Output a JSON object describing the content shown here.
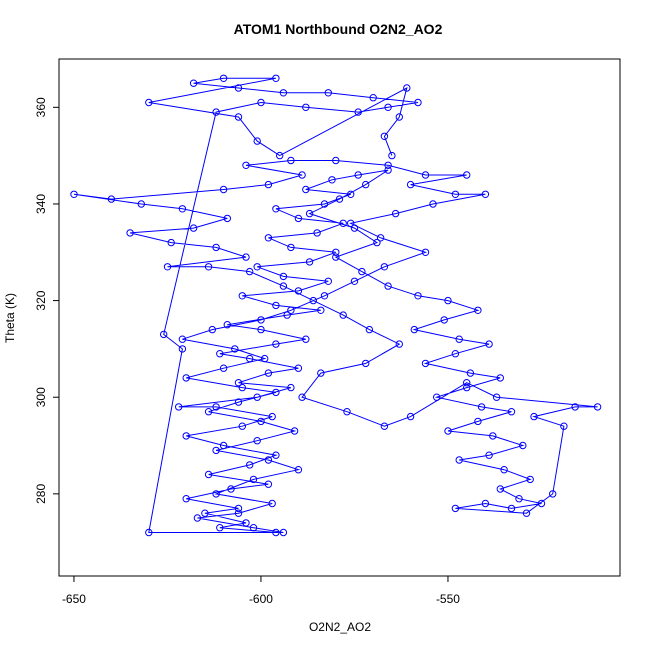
{
  "chart_data": {
    "type": "scatter",
    "title": "ATOM1 Northbound O2N2_AO2",
    "xlabel": "O2N2_AO2",
    "ylabel": "Theta (K)",
    "xlim": [
      -654,
      -504
    ],
    "ylim": [
      263,
      370
    ],
    "xticks": [
      -650,
      -600,
      -550
    ],
    "yticks": [
      280,
      300,
      320,
      340,
      360
    ],
    "grid": false,
    "legend": "none",
    "colors": {
      "series": "#0000ff",
      "axes": "#000000",
      "background": "#ffffff"
    },
    "series": [
      {
        "marker": "open-circle",
        "line": true,
        "points": [
          [
            -596,
            272
          ],
          [
            -611,
            273
          ],
          [
            -604,
            274
          ],
          [
            -615,
            276
          ],
          [
            -606,
            277
          ],
          [
            -620,
            279
          ],
          [
            -608,
            281
          ],
          [
            -598,
            282
          ],
          [
            -614,
            284
          ],
          [
            -603,
            286
          ],
          [
            -596,
            288
          ],
          [
            -610,
            290
          ],
          [
            -620,
            292
          ],
          [
            -605,
            294
          ],
          [
            -597,
            296
          ],
          [
            -612,
            298
          ],
          [
            -622,
            298
          ],
          [
            -601,
            300
          ],
          [
            -592,
            302
          ],
          [
            -606,
            303
          ],
          [
            -598,
            305
          ],
          [
            -590,
            306
          ],
          [
            -603,
            308
          ],
          [
            -611,
            309
          ],
          [
            -596,
            311
          ],
          [
            -588,
            312
          ],
          [
            -600,
            314
          ],
          [
            -609,
            315
          ],
          [
            -593,
            317
          ],
          [
            -584,
            318
          ],
          [
            -596,
            319
          ],
          [
            -605,
            321
          ],
          [
            -590,
            322
          ],
          [
            -582,
            324
          ],
          [
            -594,
            325
          ],
          [
            -601,
            327
          ],
          [
            -587,
            328
          ],
          [
            -580,
            330
          ],
          [
            -592,
            331
          ],
          [
            -598,
            333
          ],
          [
            -585,
            334
          ],
          [
            -578,
            336
          ],
          [
            -590,
            337
          ],
          [
            -596,
            339
          ],
          [
            -583,
            340
          ],
          [
            -576,
            342
          ],
          [
            -588,
            343
          ],
          [
            -581,
            345
          ],
          [
            -574,
            346
          ],
          [
            -566,
            347
          ],
          [
            -572,
            344
          ],
          [
            -579,
            341
          ],
          [
            -587,
            338
          ],
          [
            -575,
            335
          ],
          [
            -569,
            332
          ],
          [
            -580,
            329
          ],
          [
            -573,
            326
          ],
          [
            -566,
            323
          ],
          [
            -558,
            321
          ],
          [
            -550,
            320
          ],
          [
            -542,
            318
          ],
          [
            -551,
            316
          ],
          [
            -559,
            314
          ],
          [
            -547,
            312
          ],
          [
            -539,
            311
          ],
          [
            -548,
            309
          ],
          [
            -556,
            307
          ],
          [
            -544,
            305
          ],
          [
            -536,
            304
          ],
          [
            -545,
            302
          ],
          [
            -553,
            300
          ],
          [
            -541,
            298
          ],
          [
            -533,
            297
          ],
          [
            -542,
            295
          ],
          [
            -550,
            293
          ],
          [
            -538,
            292
          ],
          [
            -530,
            290
          ],
          [
            -539,
            288
          ],
          [
            -547,
            287
          ],
          [
            -535,
            285
          ],
          [
            -528,
            283
          ],
          [
            -536,
            281
          ],
          [
            -531,
            279
          ],
          [
            -525,
            278
          ],
          [
            -533,
            277
          ],
          [
            -540,
            278
          ],
          [
            -548,
            277
          ],
          [
            -529,
            276
          ],
          [
            -522,
            280
          ],
          [
            -519,
            294
          ],
          [
            -527,
            296
          ],
          [
            -516,
            298
          ],
          [
            -510,
            298
          ],
          [
            -537,
            300
          ],
          [
            -545,
            303
          ],
          [
            -560,
            296
          ],
          [
            -567,
            294
          ],
          [
            -577,
            297
          ],
          [
            -589,
            300
          ],
          [
            -584,
            305
          ],
          [
            -572,
            307
          ],
          [
            -563,
            311
          ],
          [
            -571,
            314
          ],
          [
            -578,
            317
          ],
          [
            -586,
            320
          ],
          [
            -594,
            323
          ],
          [
            -603,
            326
          ],
          [
            -614,
            327
          ],
          [
            -625,
            327
          ],
          [
            -604,
            329
          ],
          [
            -612,
            331
          ],
          [
            -624,
            332
          ],
          [
            -635,
            334
          ],
          [
            -618,
            335
          ],
          [
            -609,
            337
          ],
          [
            -621,
            339
          ],
          [
            -632,
            340
          ],
          [
            -650,
            342
          ],
          [
            -640,
            341
          ],
          [
            -610,
            343
          ],
          [
            -598,
            344
          ],
          [
            -589,
            346
          ],
          [
            -604,
            348
          ],
          [
            -592,
            349
          ],
          [
            -580,
            349
          ],
          [
            -566,
            348
          ],
          [
            -556,
            346
          ],
          [
            -545,
            346
          ],
          [
            -560,
            344
          ],
          [
            -548,
            342
          ],
          [
            -540,
            342
          ],
          [
            -554,
            340
          ],
          [
            -564,
            338
          ],
          [
            -576,
            336
          ],
          [
            -568,
            333
          ],
          [
            -556,
            330
          ],
          [
            -567,
            327
          ],
          [
            -575,
            324
          ],
          [
            -583,
            321
          ],
          [
            -592,
            318
          ],
          [
            -600,
            316
          ],
          [
            -613,
            314
          ],
          [
            -621,
            312
          ],
          [
            -607,
            310
          ],
          [
            -599,
            308
          ],
          [
            -610,
            306
          ],
          [
            -620,
            304
          ],
          [
            -605,
            302
          ],
          [
            -596,
            301
          ],
          [
            -606,
            299
          ],
          [
            -614,
            297
          ],
          [
            -600,
            295
          ],
          [
            -591,
            293
          ],
          [
            -601,
            291
          ],
          [
            -612,
            289
          ],
          [
            -598,
            287
          ],
          [
            -590,
            285
          ],
          [
            -602,
            283
          ],
          [
            -612,
            280
          ],
          [
            -597,
            278
          ],
          [
            -606,
            276
          ],
          [
            -617,
            275
          ],
          [
            -602,
            273
          ],
          [
            -594,
            272
          ],
          [
            -630,
            272
          ],
          [
            -621,
            310
          ],
          [
            -626,
            313
          ],
          [
            -612,
            359
          ],
          [
            -600,
            361
          ],
          [
            -588,
            360
          ],
          [
            -574,
            359
          ],
          [
            -566,
            360
          ],
          [
            -558,
            361
          ],
          [
            -570,
            362
          ],
          [
            -582,
            363
          ],
          [
            -594,
            363
          ],
          [
            -606,
            364
          ],
          [
            -618,
            365
          ],
          [
            -610,
            366
          ],
          [
            -596,
            366
          ],
          [
            -630,
            361
          ],
          [
            -606,
            358
          ],
          [
            -601,
            353
          ],
          [
            -595,
            350
          ],
          [
            -561,
            364
          ],
          [
            -563,
            358
          ],
          [
            -567,
            354
          ],
          [
            -565,
            350
          ]
        ]
      }
    ]
  }
}
